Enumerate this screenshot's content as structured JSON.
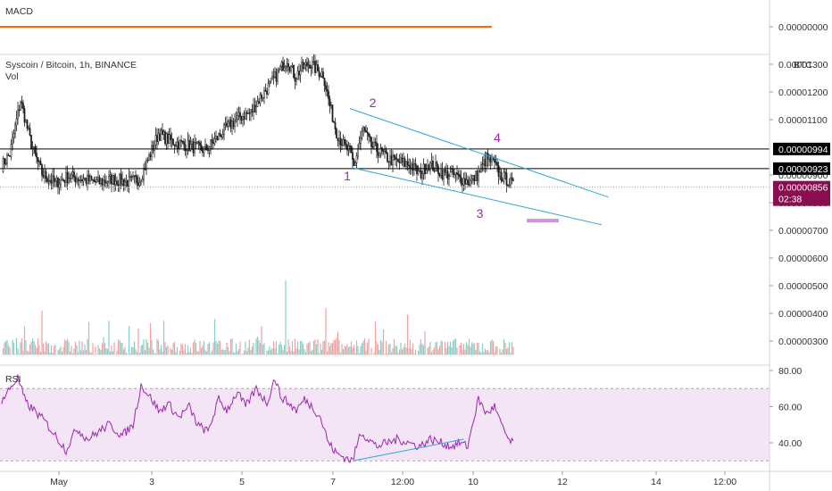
{
  "colors": {
    "up": "#26a69a",
    "down": "#ef5350",
    "candle": "#1c1c1c",
    "trendline": "#2aa7d8",
    "macd_line": "#ff6d00",
    "rsi_line": "#9c27b0",
    "rsi_band": "#f3e5f5",
    "current_tag": "#880e4f",
    "level_tag": "#000000",
    "wave_label": "#9c27b0",
    "marker": "#ce93d8"
  },
  "chart_data": [
    {
      "type": "line",
      "pane": "macd",
      "title": "MACD",
      "ytick_labels": [
        "0.00000000"
      ],
      "series": [
        {
          "values": [
            0,
            0
          ]
        }
      ]
    },
    {
      "type": "candlestick",
      "pane": "price",
      "title": "Syscoin / Bitcoin, 1h, BINANCE",
      "volume_label": "Vol",
      "currency_label": "BTC",
      "ytick_labels": [
        "0.00001300",
        "0.00001200",
        "0.00001100",
        "0.00000900",
        "0.00000800",
        "0.00000700",
        "0.00000600",
        "0.00000500",
        "0.00000400",
        "0.00000300"
      ],
      "ylim": [
        2e-06,
        1.3e-05
      ],
      "xtick_labels": [
        "May",
        "3",
        "5",
        "7",
        "12:00",
        "10",
        "12",
        "14",
        "12:00"
      ],
      "series": [
        {
          "name": "price",
          "anchors": [
            [
              0,
              9.35e-06
            ],
            [
              6,
              9.75e-06
            ],
            [
              14,
              1.17e-05
            ],
            [
              22,
              1.01e-05
            ],
            [
              30,
              9.05e-06
            ],
            [
              40,
              8.7e-06
            ],
            [
              50,
              8.95e-06
            ],
            [
              60,
              8.85e-06
            ],
            [
              72,
              8.72e-06
            ],
            [
              82,
              8.85e-06
            ],
            [
              95,
              8.75e-06
            ],
            [
              103,
              8.85e-06
            ],
            [
              110,
              9.65e-06
            ],
            [
              117,
              1.05e-05
            ],
            [
              125,
              1.025e-05
            ],
            [
              132,
              1.015e-05
            ],
            [
              140,
              1.005e-05
            ],
            [
              152,
              9.9e-06
            ],
            [
              162,
              1.04e-05
            ],
            [
              170,
              1.08e-05
            ],
            [
              178,
              1.11e-05
            ],
            [
              186,
              1.125e-05
            ],
            [
              193,
              1.18e-05
            ],
            [
              201,
              1.23e-05
            ],
            [
              209,
              1.29e-05
            ],
            [
              213,
              1.32e-05
            ],
            [
              219,
              1.255e-05
            ],
            [
              224,
              1.285e-05
            ],
            [
              230,
              1.305e-05
            ],
            [
              236,
              1.275e-05
            ],
            [
              240,
              1.265e-05
            ],
            [
              245,
              1.15e-05
            ],
            [
              250,
              1.055e-05
            ],
            [
              256,
              1e-05
            ],
            [
              260,
              9.85e-06
            ],
            [
              263,
              9.3e-06
            ],
            [
              267,
              1.015e-05
            ],
            [
              270,
              1.065e-05
            ],
            [
              276,
              1.005e-05
            ],
            [
              282,
              9.85e-06
            ],
            [
              290,
              9.55e-06
            ],
            [
              298,
              9.45e-06
            ],
            [
              306,
              9.35e-06
            ],
            [
              312,
              9e-06
            ],
            [
              318,
              9.4e-06
            ],
            [
              324,
              9.25e-06
            ],
            [
              330,
              9.05e-06
            ],
            [
              338,
              8.98e-06
            ],
            [
              346,
              8.8e-06
            ],
            [
              350,
              8.75e-06
            ],
            [
              356,
              9.05e-06
            ],
            [
              362,
              9.6e-06
            ],
            [
              367,
              9.45e-06
            ],
            [
              372,
              9e-06
            ],
            [
              378,
              8.8e-06
            ],
            [
              382,
              8.6e-06
            ]
          ]
        },
        {
          "name": "volume",
          "bars": [
            {
              "x": 30,
              "v": 4.1e-06
            },
            {
              "x": 95,
              "v": 3.55e-06
            },
            {
              "x": 212,
              "v": 5.2e-06
            },
            {
              "x": 242,
              "v": 4.2e-06
            },
            {
              "x": 303,
              "v": 3.95e-06
            },
            {
              "x": 316,
              "v": 3.35e-06
            }
          ]
        }
      ],
      "levels": [
        {
          "label": "0.00000994",
          "value": 9.94e-06
        },
        {
          "label": "0.00000923",
          "value": 9.23e-06
        }
      ],
      "current_price": {
        "value": 8.56e-06,
        "label": "0.00000856",
        "countdown": "02:38"
      },
      "trendlines": [
        {
          "from": [
            260,
            1.14e-05
          ],
          "to": [
            453,
            8.2e-06
          ]
        },
        {
          "from": [
            263,
            9.25e-06
          ],
          "to": [
            448,
            7.2e-06
          ]
        }
      ],
      "annotations": [
        {
          "text": "1",
          "at": [
            258,
            8.8e-06
          ]
        },
        {
          "text": "2",
          "at": [
            277,
            1.145e-05
          ]
        },
        {
          "text": "3",
          "at": [
            357,
            7.45e-06
          ]
        },
        {
          "text": "4",
          "at": [
            370,
            1.02e-05
          ]
        }
      ],
      "marker": {
        "from": [
          392,
          7.35e-06
        ],
        "to": [
          416,
          7.35e-06
        ]
      }
    },
    {
      "type": "line",
      "pane": "rsi",
      "title": "RSI",
      "ytick_labels": [
        "80.00",
        "60.00",
        "40.00"
      ],
      "ylim": [
        25,
        83
      ],
      "band": [
        30,
        70
      ],
      "series": [
        {
          "name": "RSI",
          "anchors": [
            [
              0,
              63
            ],
            [
              6,
              70
            ],
            [
              12,
              76
            ],
            [
              18,
              62
            ],
            [
              24,
              58
            ],
            [
              32,
              52
            ],
            [
              40,
              44
            ],
            [
              48,
              36
            ],
            [
              56,
              48
            ],
            [
              64,
              42
            ],
            [
              72,
              46
            ],
            [
              80,
              50
            ],
            [
              90,
              44
            ],
            [
              98,
              50
            ],
            [
              104,
              72
            ],
            [
              112,
              64
            ],
            [
              118,
              57
            ],
            [
              124,
              62
            ],
            [
              132,
              54
            ],
            [
              140,
              60
            ],
            [
              146,
              50
            ],
            [
              154,
              46
            ],
            [
              162,
              64
            ],
            [
              168,
              58
            ],
            [
              176,
              68
            ],
            [
              182,
              60
            ],
            [
              190,
              70
            ],
            [
              198,
              62
            ],
            [
              204,
              76
            ],
            [
              208,
              66
            ],
            [
              214,
              62
            ],
            [
              220,
              58
            ],
            [
              226,
              64
            ],
            [
              232,
              60
            ],
            [
              238,
              54
            ],
            [
              244,
              40
            ],
            [
              250,
              34
            ],
            [
              256,
              32
            ],
            [
              262,
              30
            ],
            [
              268,
              46
            ],
            [
              274,
              42
            ],
            [
              280,
              38
            ],
            [
              288,
              40
            ],
            [
              296,
              42
            ],
            [
              304,
              40
            ],
            [
              312,
              38
            ],
            [
              320,
              42
            ],
            [
              328,
              40
            ],
            [
              336,
              38
            ],
            [
              342,
              40
            ],
            [
              348,
              38
            ],
            [
              352,
              52
            ],
            [
              356,
              64
            ],
            [
              362,
              56
            ],
            [
              368,
              60
            ],
            [
              374,
              48
            ],
            [
              380,
              40
            ]
          ]
        }
      ],
      "divergence_line": {
        "from": [
          262,
          30
        ],
        "to": [
          345,
          42
        ]
      }
    }
  ]
}
